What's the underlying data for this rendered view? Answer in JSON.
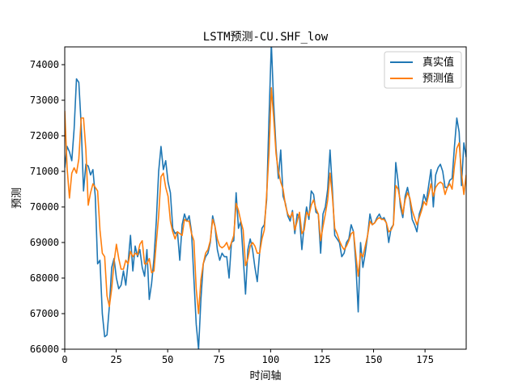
{
  "chart_data": {
    "type": "line",
    "title": "LSTM预测-CU.SHF_low",
    "xlabel": "时间轴",
    "ylabel": "预测",
    "xlim": [
      0,
      195
    ],
    "ylim": [
      66000,
      74500
    ],
    "xticks": [
      0,
      25,
      50,
      75,
      100,
      125,
      150,
      175
    ],
    "yticks": [
      66000,
      67000,
      68000,
      69000,
      70000,
      71000,
      72000,
      73000,
      74000
    ],
    "legend_position": "top-right",
    "grid": false,
    "series": [
      {
        "name": "真实值",
        "color": "#1f77b4",
        "values": [
          71100,
          71700,
          71550,
          71300,
          72200,
          73600,
          73500,
          72300,
          70450,
          71200,
          71150,
          70900,
          71050,
          70300,
          68400,
          68500,
          67000,
          66350,
          66400,
          67200,
          68300,
          68550,
          68000,
          67700,
          67800,
          68200,
          67800,
          68450,
          69200,
          68200,
          68900,
          68600,
          68800,
          68300,
          68050,
          68800,
          67400,
          67850,
          68550,
          69600,
          71000,
          71700,
          71050,
          71300,
          70700,
          70400,
          69400,
          69250,
          69300,
          68500,
          69500,
          69800,
          69600,
          69750,
          69300,
          68000,
          66700,
          66000,
          67400,
          68400,
          68600,
          68700,
          69000,
          69750,
          69450,
          68800,
          68500,
          68700,
          68600,
          68600,
          68000,
          69000,
          69050,
          70400,
          69400,
          69600,
          68600,
          67550,
          68800,
          69100,
          68800,
          68300,
          67900,
          68700,
          69400,
          69500,
          70200,
          72500,
          74600,
          72900,
          71650,
          70800,
          71600,
          70300,
          70100,
          69750,
          69600,
          69900,
          69250,
          69800,
          69700,
          68800,
          69500,
          70000,
          69650,
          70450,
          70350,
          69850,
          69800,
          68700,
          69800,
          70000,
          70500,
          71600,
          70500,
          69200,
          69100,
          69000,
          68600,
          68700,
          69000,
          69100,
          69500,
          69300,
          68400,
          67050,
          69000,
          68300,
          68700,
          69200,
          69800,
          69500,
          69550,
          69700,
          69800,
          69650,
          69700,
          69550,
          69000,
          69400,
          69500,
          71250,
          70700,
          70000,
          69700,
          70300,
          70550,
          70200,
          69650,
          69500,
          69300,
          69800,
          70000,
          70350,
          70150,
          70600,
          71050,
          70000,
          70900,
          71100,
          71200,
          71000,
          70550,
          70550,
          70750,
          70800,
          71700,
          72500,
          72100,
          70600,
          71800,
          71400
        ],
        "x_start": 0,
        "x_end": 195
      },
      {
        "name": "预测值",
        "color": "#ff7f0e",
        "values": [
          72700,
          71100,
          70250,
          70950,
          71100,
          70950,
          71350,
          72500,
          72500,
          71600,
          70050,
          70400,
          70650,
          70550,
          70450,
          69350,
          68700,
          68600,
          67500,
          67200,
          67700,
          68450,
          68950,
          68550,
          68250,
          68250,
          68500,
          68400,
          68750,
          68600,
          68700,
          68650,
          68950,
          69050,
          68400,
          68400,
          68550,
          68150,
          68200,
          69000,
          69750,
          70850,
          70950,
          70550,
          70300,
          69600,
          69300,
          69100,
          69300,
          69250,
          69200,
          69650,
          69600,
          69600,
          69250,
          69050,
          67700,
          67000,
          67950,
          68400,
          68700,
          68800,
          69050,
          69650,
          69450,
          69100,
          68900,
          68850,
          68900,
          69000,
          68800,
          69000,
          69200,
          70100,
          69900,
          69600,
          69350,
          68350,
          68550,
          68900,
          69000,
          68900,
          68700,
          68700,
          69100,
          69350,
          70350,
          71500,
          73350,
          72500,
          71500,
          71000,
          70700,
          70500,
          70050,
          69800,
          69700,
          69850,
          69350,
          69600,
          69850,
          69250,
          69350,
          69850,
          69750,
          70050,
          70200,
          69950,
          69800,
          69050,
          69450,
          69800,
          70200,
          70950,
          70300,
          69400,
          69250,
          69050,
          68900,
          68800,
          68900,
          69050,
          69250,
          69300,
          68650,
          68050,
          68700,
          68600,
          68900,
          69200,
          69600,
          69500,
          69550,
          69650,
          69700,
          69650,
          69650,
          69550,
          69300,
          69350,
          69500,
          70600,
          70500,
          70150,
          69800,
          70200,
          70400,
          70250,
          69900,
          69700,
          69500,
          69700,
          69900,
          70150,
          70050,
          70350,
          70650,
          70300,
          70550,
          70650,
          70700,
          70650,
          70350,
          70550,
          70650,
          70500,
          71150,
          71650,
          71800,
          70950,
          70350,
          70900
        ],
        "x_start": 0,
        "x_end": 195
      }
    ]
  }
}
